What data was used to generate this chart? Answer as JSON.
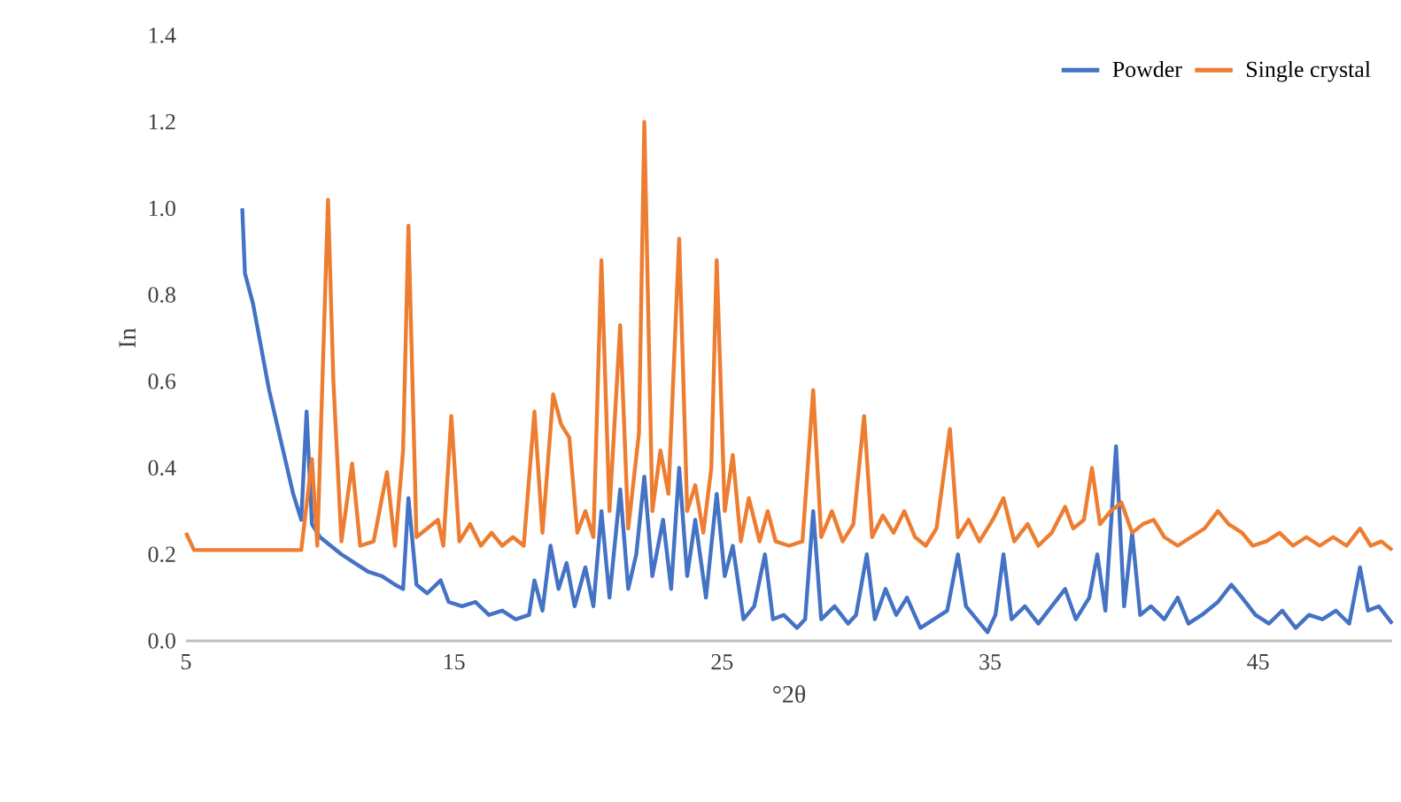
{
  "chart_data": {
    "type": "line",
    "xlabel": "°2θ",
    "ylabel": "In",
    "xlim": [
      5,
      50
    ],
    "xticks": [
      5,
      15,
      25,
      35,
      45
    ],
    "ylim": [
      0,
      1.4
    ],
    "yticks": [
      {
        "value": 0,
        "label": "0.0"
      },
      {
        "value": 0.2,
        "label": "0.2"
      },
      {
        "value": 0.4,
        "label": "0.4"
      },
      {
        "value": 0.6,
        "label": "0.6"
      },
      {
        "value": 0.8,
        "label": "0.8"
      },
      {
        "value": 1.0,
        "label": "1.0"
      },
      {
        "value": 1.2,
        "label": "1.2"
      },
      {
        "value": 1.4,
        "label": "1.4"
      }
    ],
    "grid": false,
    "legend": "top right",
    "marker": "none",
    "line_style": "solid",
    "series": [
      {
        "name": "Powder",
        "color": "#4472c4",
        "x": [
          7.1,
          7.2,
          7.5,
          7.8,
          8.1,
          8.4,
          8.7,
          9.0,
          9.3,
          9.5,
          9.7,
          10.0,
          10.4,
          10.8,
          11.3,
          11.8,
          12.3,
          12.8,
          13.1,
          13.3,
          13.6,
          14.0,
          14.5,
          14.8,
          15.3,
          15.8,
          16.3,
          16.8,
          17.3,
          17.8,
          18.0,
          18.3,
          18.6,
          18.9,
          19.2,
          19.5,
          19.9,
          20.2,
          20.5,
          20.8,
          21.2,
          21.5,
          21.8,
          22.1,
          22.4,
          22.8,
          23.1,
          23.4,
          23.7,
          24.0,
          24.4,
          24.8,
          25.1,
          25.4,
          25.8,
          26.2,
          26.6,
          26.9,
          27.3,
          27.8,
          28.1,
          28.4,
          28.7,
          29.2,
          29.7,
          30.0,
          30.4,
          30.7,
          31.1,
          31.5,
          31.9,
          32.4,
          32.9,
          33.4,
          33.8,
          34.1,
          34.5,
          34.9,
          35.2,
          35.5,
          35.8,
          36.3,
          36.8,
          37.3,
          37.8,
          38.2,
          38.7,
          39.0,
          39.3,
          39.7,
          40.0,
          40.3,
          40.6,
          41.0,
          41.5,
          42.0,
          42.4,
          42.9,
          43.5,
          44.0,
          44.4,
          44.9,
          45.4,
          45.9,
          46.4,
          46.9,
          47.4,
          47.9,
          48.4,
          48.8,
          49.1,
          49.5,
          50.0
        ],
        "values": [
          1.0,
          0.85,
          0.78,
          0.68,
          0.58,
          0.5,
          0.42,
          0.34,
          0.28,
          0.53,
          0.27,
          0.24,
          0.22,
          0.2,
          0.18,
          0.16,
          0.15,
          0.13,
          0.12,
          0.33,
          0.13,
          0.11,
          0.14,
          0.09,
          0.08,
          0.09,
          0.06,
          0.07,
          0.05,
          0.06,
          0.14,
          0.07,
          0.22,
          0.12,
          0.18,
          0.08,
          0.17,
          0.08,
          0.3,
          0.1,
          0.35,
          0.12,
          0.2,
          0.38,
          0.15,
          0.28,
          0.12,
          0.4,
          0.15,
          0.28,
          0.1,
          0.34,
          0.15,
          0.22,
          0.05,
          0.08,
          0.2,
          0.05,
          0.06,
          0.03,
          0.05,
          0.3,
          0.05,
          0.08,
          0.04,
          0.06,
          0.2,
          0.05,
          0.12,
          0.06,
          0.1,
          0.03,
          0.05,
          0.07,
          0.2,
          0.08,
          0.05,
          0.02,
          0.06,
          0.2,
          0.05,
          0.08,
          0.04,
          0.08,
          0.12,
          0.05,
          0.1,
          0.2,
          0.07,
          0.45,
          0.08,
          0.25,
          0.06,
          0.08,
          0.05,
          0.1,
          0.04,
          0.06,
          0.09,
          0.13,
          0.1,
          0.06,
          0.04,
          0.07,
          0.03,
          0.06,
          0.05,
          0.07,
          0.04,
          0.17,
          0.07,
          0.08,
          0.04
        ]
      },
      {
        "name": "Single crystal",
        "color": "#ed7d31",
        "x": [
          5,
          5.3,
          9.3,
          9.7,
          9.9,
          10.3,
          10.5,
          10.8,
          11.2,
          11.5,
          12.0,
          12.5,
          12.8,
          13.1,
          13.3,
          13.6,
          14.0,
          14.4,
          14.6,
          14.9,
          15.2,
          15.6,
          16.0,
          16.4,
          16.8,
          17.2,
          17.6,
          18.0,
          18.3,
          18.7,
          19.0,
          19.3,
          19.6,
          19.9,
          20.2,
          20.5,
          20.8,
          21.2,
          21.5,
          21.9,
          22.1,
          22.4,
          22.7,
          23.0,
          23.4,
          23.7,
          24.0,
          24.3,
          24.6,
          24.8,
          25.1,
          25.4,
          25.7,
          26.0,
          26.4,
          26.7,
          27.0,
          27.5,
          28.0,
          28.4,
          28.7,
          29.1,
          29.5,
          29.9,
          30.3,
          30.6,
          31.0,
          31.4,
          31.8,
          32.2,
          32.6,
          33.0,
          33.5,
          33.8,
          34.2,
          34.6,
          35.1,
          35.5,
          35.9,
          36.4,
          36.8,
          37.3,
          37.8,
          38.1,
          38.5,
          38.8,
          39.1,
          39.5,
          39.9,
          40.3,
          40.7,
          41.1,
          41.5,
          42.0,
          42.5,
          43.0,
          43.5,
          43.9,
          44.4,
          44.8,
          45.3,
          45.8,
          46.3,
          46.8,
          47.3,
          47.8,
          48.3,
          48.8,
          49.2,
          49.6,
          50
        ],
        "values": [
          0.25,
          0.21,
          0.21,
          0.42,
          0.22,
          1.02,
          0.6,
          0.23,
          0.41,
          0.22,
          0.23,
          0.39,
          0.22,
          0.44,
          0.96,
          0.24,
          0.26,
          0.28,
          0.22,
          0.52,
          0.23,
          0.27,
          0.22,
          0.25,
          0.22,
          0.24,
          0.22,
          0.53,
          0.25,
          0.57,
          0.5,
          0.47,
          0.25,
          0.3,
          0.24,
          0.88,
          0.3,
          0.73,
          0.26,
          0.48,
          1.2,
          0.3,
          0.44,
          0.34,
          0.93,
          0.3,
          0.36,
          0.25,
          0.4,
          0.88,
          0.3,
          0.43,
          0.23,
          0.33,
          0.23,
          0.3,
          0.23,
          0.22,
          0.23,
          0.58,
          0.24,
          0.3,
          0.23,
          0.27,
          0.52,
          0.24,
          0.29,
          0.25,
          0.3,
          0.24,
          0.22,
          0.26,
          0.49,
          0.24,
          0.28,
          0.23,
          0.28,
          0.33,
          0.23,
          0.27,
          0.22,
          0.25,
          0.31,
          0.26,
          0.28,
          0.4,
          0.27,
          0.3,
          0.32,
          0.25,
          0.27,
          0.28,
          0.24,
          0.22,
          0.24,
          0.26,
          0.3,
          0.27,
          0.25,
          0.22,
          0.23,
          0.25,
          0.22,
          0.24,
          0.22,
          0.24,
          0.22,
          0.26,
          0.22,
          0.23,
          0.21
        ]
      }
    ]
  }
}
